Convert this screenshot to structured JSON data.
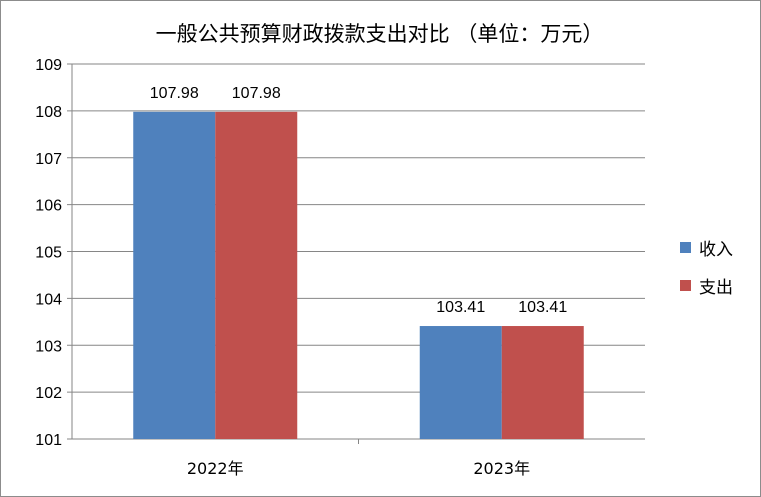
{
  "chart_data": {
    "type": "bar",
    "title": "一般公共预算财政拨款支出对比 （单位：万元）",
    "categories": [
      "2022年",
      "2023年"
    ],
    "series": [
      {
        "name": "收入",
        "values": [
          107.98,
          103.41
        ],
        "color": "#4f81bd"
      },
      {
        "name": "支出",
        "values": [
          107.98,
          103.41
        ],
        "color": "#c0504d"
      }
    ],
    "data_labels": [
      [
        "107.98",
        "103.41"
      ],
      [
        "107.98",
        "103.41"
      ]
    ],
    "ylim": [
      101,
      109
    ],
    "yticks": [
      101,
      102,
      103,
      104,
      105,
      106,
      107,
      108,
      109
    ],
    "grid": true,
    "legend_position": "right"
  }
}
